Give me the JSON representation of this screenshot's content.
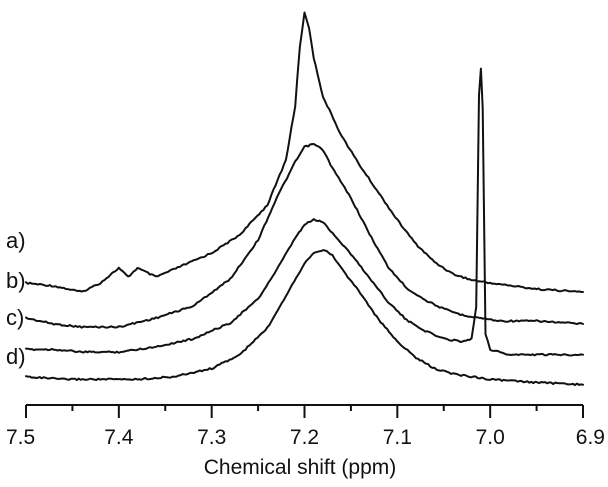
{
  "chart_data": {
    "type": "line",
    "xlabel": "Chemical shift (ppm)",
    "ylabel": "",
    "xlim": [
      7.5,
      6.9
    ],
    "x_reversed": true,
    "y_axis_shown": false,
    "grid": false,
    "xticks": [
      "7.5",
      "7.4",
      "7.3",
      "7.2",
      "7.1",
      "7.0",
      "6.9"
    ],
    "line_color": "#111111",
    "series": [
      {
        "name": "a)",
        "x": [
          7.5,
          7.47,
          7.44,
          7.42,
          7.4,
          7.39,
          7.38,
          7.36,
          7.33,
          7.3,
          7.27,
          7.24,
          7.22,
          7.21,
          7.205,
          7.2,
          7.195,
          7.19,
          7.18,
          7.16,
          7.14,
          7.12,
          7.1,
          7.08,
          7.06,
          7.04,
          7.02,
          7.0,
          6.95,
          6.9
        ],
        "y": [
          0.09,
          0.08,
          0.06,
          0.09,
          0.14,
          0.11,
          0.14,
          0.11,
          0.15,
          0.19,
          0.25,
          0.35,
          0.5,
          0.68,
          0.88,
          0.99,
          0.94,
          0.84,
          0.71,
          0.58,
          0.48,
          0.39,
          0.3,
          0.22,
          0.16,
          0.12,
          0.1,
          0.09,
          0.07,
          0.06
        ]
      },
      {
        "name": "b)",
        "x": [
          7.5,
          7.47,
          7.44,
          7.4,
          7.36,
          7.32,
          7.28,
          7.25,
          7.23,
          7.21,
          7.2,
          7.19,
          7.18,
          7.17,
          7.15,
          7.13,
          7.11,
          7.09,
          7.07,
          7.05,
          7.03,
          7.01,
          6.99,
          6.95,
          6.9
        ],
        "y": [
          0.08,
          0.06,
          0.05,
          0.05,
          0.08,
          0.12,
          0.21,
          0.34,
          0.48,
          0.6,
          0.65,
          0.66,
          0.64,
          0.58,
          0.48,
          0.36,
          0.25,
          0.18,
          0.14,
          0.11,
          0.09,
          0.08,
          0.07,
          0.07,
          0.06
        ]
      },
      {
        "name": "c)",
        "x": [
          7.5,
          7.47,
          7.44,
          7.4,
          7.36,
          7.32,
          7.28,
          7.25,
          7.23,
          7.21,
          7.2,
          7.19,
          7.18,
          7.17,
          7.15,
          7.13,
          7.11,
          7.09,
          7.07,
          7.05,
          7.03,
          7.02,
          7.015,
          7.012,
          7.01,
          7.008,
          7.005,
          7.0,
          6.98,
          6.95,
          6.9
        ],
        "y": [
          0.04,
          0.04,
          0.03,
          0.03,
          0.05,
          0.08,
          0.14,
          0.23,
          0.34,
          0.46,
          0.51,
          0.53,
          0.52,
          0.48,
          0.4,
          0.31,
          0.22,
          0.15,
          0.11,
          0.08,
          0.07,
          0.08,
          0.2,
          1.0,
          1.1,
          0.95,
          0.1,
          0.04,
          0.02,
          0.02,
          0.02
        ]
      },
      {
        "name": "d)",
        "x": [
          7.5,
          7.46,
          7.42,
          7.38,
          7.34,
          7.3,
          7.27,
          7.24,
          7.22,
          7.2,
          7.19,
          7.18,
          7.17,
          7.16,
          7.14,
          7.12,
          7.1,
          7.08,
          7.06,
          7.04,
          7.02,
          7.0,
          6.96,
          6.9
        ],
        "y": [
          0.02,
          0.01,
          0.01,
          0.01,
          0.02,
          0.05,
          0.1,
          0.2,
          0.32,
          0.44,
          0.48,
          0.49,
          0.47,
          0.42,
          0.33,
          0.23,
          0.15,
          0.09,
          0.05,
          0.03,
          0.02,
          0.01,
          0.0,
          -0.01
        ]
      }
    ]
  }
}
